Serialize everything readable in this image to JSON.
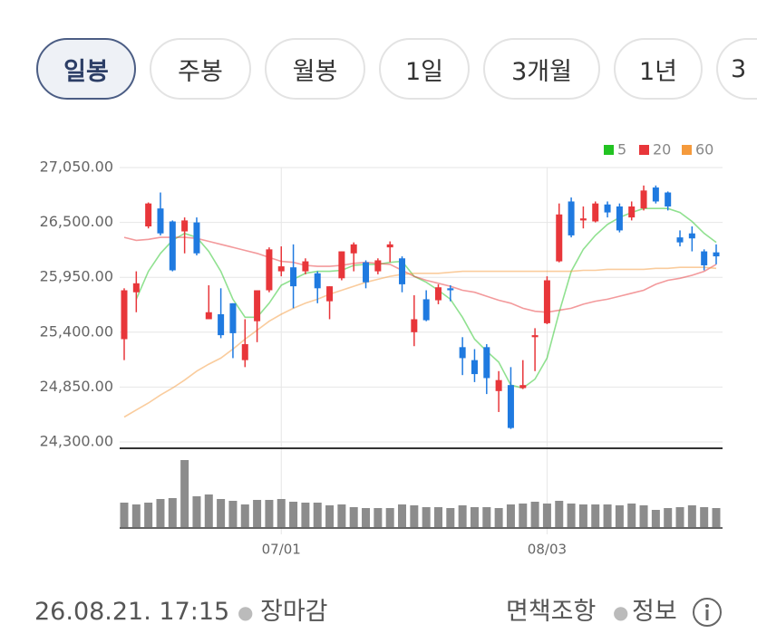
{
  "tabs": [
    {
      "label": "일봉",
      "selected": true
    },
    {
      "label": "주봉"
    },
    {
      "label": "월봉"
    },
    {
      "label": "1일"
    },
    {
      "label": "3개월"
    },
    {
      "label": "1년"
    },
    {
      "label": "3"
    }
  ],
  "chart_data": {
    "type": "candlestick",
    "categories": [
      null,
      null,
      null,
      null,
      null,
      null,
      null,
      null,
      null,
      null,
      null,
      null,
      null,
      "07/01",
      null,
      null,
      null,
      null,
      null,
      null,
      null,
      null,
      null,
      null,
      null,
      null,
      null,
      null,
      null,
      null,
      null,
      null,
      null,
      null,
      null,
      "08/03",
      null,
      null,
      null,
      null,
      null,
      null,
      null,
      null,
      null,
      null,
      null,
      null,
      null,
      null
    ],
    "open": [
      25330,
      25800,
      26460,
      26640,
      26510,
      26410,
      26500,
      25530,
      25580,
      25690,
      25120,
      25510,
      25820,
      26010,
      26050,
      26010,
      25990,
      25710,
      25940,
      26190,
      26100,
      26010,
      26250,
      26140,
      25400,
      25730,
      25720,
      25840,
      25250,
      25120,
      25250,
      24810,
      24870,
      24840,
      25350,
      25490,
      26110,
      26710,
      26520,
      26510,
      26680,
      26660,
      26550,
      26640,
      26850,
      26800,
      26350,
      26390,
      26210,
      26200
    ],
    "high": [
      25840,
      26010,
      26700,
      26800,
      26520,
      26550,
      26550,
      25870,
      25840,
      25690,
      25530,
      25820,
      26250,
      26260,
      26280,
      26140,
      26010,
      25860,
      26210,
      26300,
      26120,
      26140,
      26310,
      26160,
      25770,
      25820,
      25880,
      25870,
      25350,
      25230,
      25280,
      25010,
      25050,
      25120,
      25440,
      25960,
      26690,
      26750,
      26660,
      26710,
      26710,
      26690,
      26710,
      26870,
      26870,
      26810,
      26420,
      26460,
      26230,
      26280
    ],
    "low": [
      25120,
      25600,
      26440,
      26370,
      26010,
      26190,
      26170,
      25530,
      25340,
      25140,
      25050,
      25300,
      25800,
      25960,
      25640,
      25980,
      25690,
      25530,
      25920,
      26010,
      25840,
      25980,
      26100,
      25800,
      25260,
      25510,
      25680,
      25710,
      24970,
      24900,
      24780,
      24600,
      24430,
      24830,
      25010,
      25480,
      26100,
      26350,
      26440,
      26500,
      26550,
      26400,
      26520,
      26620,
      26690,
      26620,
      26260,
      26210,
      26020,
      26080
    ],
    "close": [
      25820,
      25890,
      26690,
      26390,
      26020,
      26520,
      26190,
      25600,
      25370,
      25390,
      25280,
      25820,
      26230,
      26060,
      25860,
      26110,
      25840,
      25860,
      26210,
      26280,
      25900,
      26120,
      26280,
      25880,
      25530,
      25520,
      25850,
      25820,
      25140,
      24980,
      24940,
      24920,
      24440,
      24870,
      25370,
      25920,
      26580,
      26370,
      26540,
      26690,
      26600,
      26420,
      26660,
      26820,
      26710,
      26660,
      26300,
      26340,
      26070,
      26160
    ],
    "up_color": "#e8363a",
    "down_color": "#1f7ae0",
    "series": [
      {
        "name": "5",
        "color": "#22c322",
        "values": [
          null,
          25730,
          26010,
          26190,
          26320,
          26390,
          26350,
          26210,
          26010,
          25730,
          25550,
          25550,
          25690,
          25870,
          25930,
          25990,
          26010,
          26010,
          26020,
          26070,
          26080,
          26080,
          26100,
          26110,
          25960,
          25900,
          25820,
          25730,
          25550,
          25330,
          25210,
          25100,
          24870,
          24840,
          24930,
          25140,
          25600,
          26010,
          26230,
          26370,
          26480,
          26550,
          26600,
          26640,
          26640,
          26640,
          26600,
          26510,
          26390,
          26300
        ]
      },
      {
        "name": "20",
        "color": "#e8363a",
        "values": [
          26350,
          26320,
          26330,
          26350,
          26350,
          26350,
          26340,
          26310,
          26280,
          26250,
          26220,
          26190,
          26150,
          26110,
          26100,
          26070,
          26060,
          26060,
          26070,
          26090,
          26100,
          26090,
          26080,
          26020,
          25960,
          25920,
          25890,
          25860,
          25820,
          25800,
          25760,
          25720,
          25690,
          25640,
          25610,
          25600,
          25620,
          25640,
          25680,
          25710,
          25730,
          25760,
          25790,
          25820,
          25880,
          25920,
          25940,
          25970,
          26010,
          26080
        ]
      },
      {
        "name": "60",
        "color": "#f59a3c",
        "values": [
          24550,
          24620,
          24690,
          24770,
          24840,
          24920,
          25010,
          25080,
          25140,
          25230,
          25330,
          25420,
          25510,
          25580,
          25640,
          25690,
          25730,
          25780,
          25820,
          25860,
          25900,
          25930,
          25960,
          25980,
          25990,
          25990,
          25990,
          26000,
          26010,
          26010,
          26010,
          26010,
          26010,
          26010,
          26010,
          26010,
          26010,
          26010,
          26020,
          26020,
          26030,
          26030,
          26030,
          26030,
          26040,
          26040,
          26050,
          26050,
          26050,
          26040
        ]
      }
    ],
    "volume": [
      27,
      25,
      27,
      31,
      32,
      74,
      34,
      36,
      31,
      29,
      25,
      30,
      30,
      31,
      28,
      27,
      27,
      24,
      25,
      22,
      21,
      21,
      21,
      25,
      24,
      22,
      22,
      21,
      24,
      22,
      22,
      21,
      25,
      26,
      28,
      26,
      29,
      26,
      25,
      25,
      25,
      24,
      26,
      24,
      19,
      21,
      22,
      24,
      22,
      21
    ],
    "volume_color": "#8c8c8c",
    "ylim": [
      24300,
      27050
    ],
    "yticks": [
      {
        "value": 24300,
        "label": "24,300.00"
      },
      {
        "value": 24850,
        "label": "24,850.00"
      },
      {
        "value": 25400,
        "label": "25,400.00"
      },
      {
        "value": 25950,
        "label": "25,950.00"
      },
      {
        "value": 26500,
        "label": "26,500.00"
      },
      {
        "value": 27050,
        "label": "27,050.00"
      }
    ],
    "grid": true,
    "legend": "top-right"
  },
  "footer": {
    "timestamp": "26.08.21. 17:15",
    "status": "장마감",
    "disclaimer": "면책조항",
    "info": "정보"
  }
}
